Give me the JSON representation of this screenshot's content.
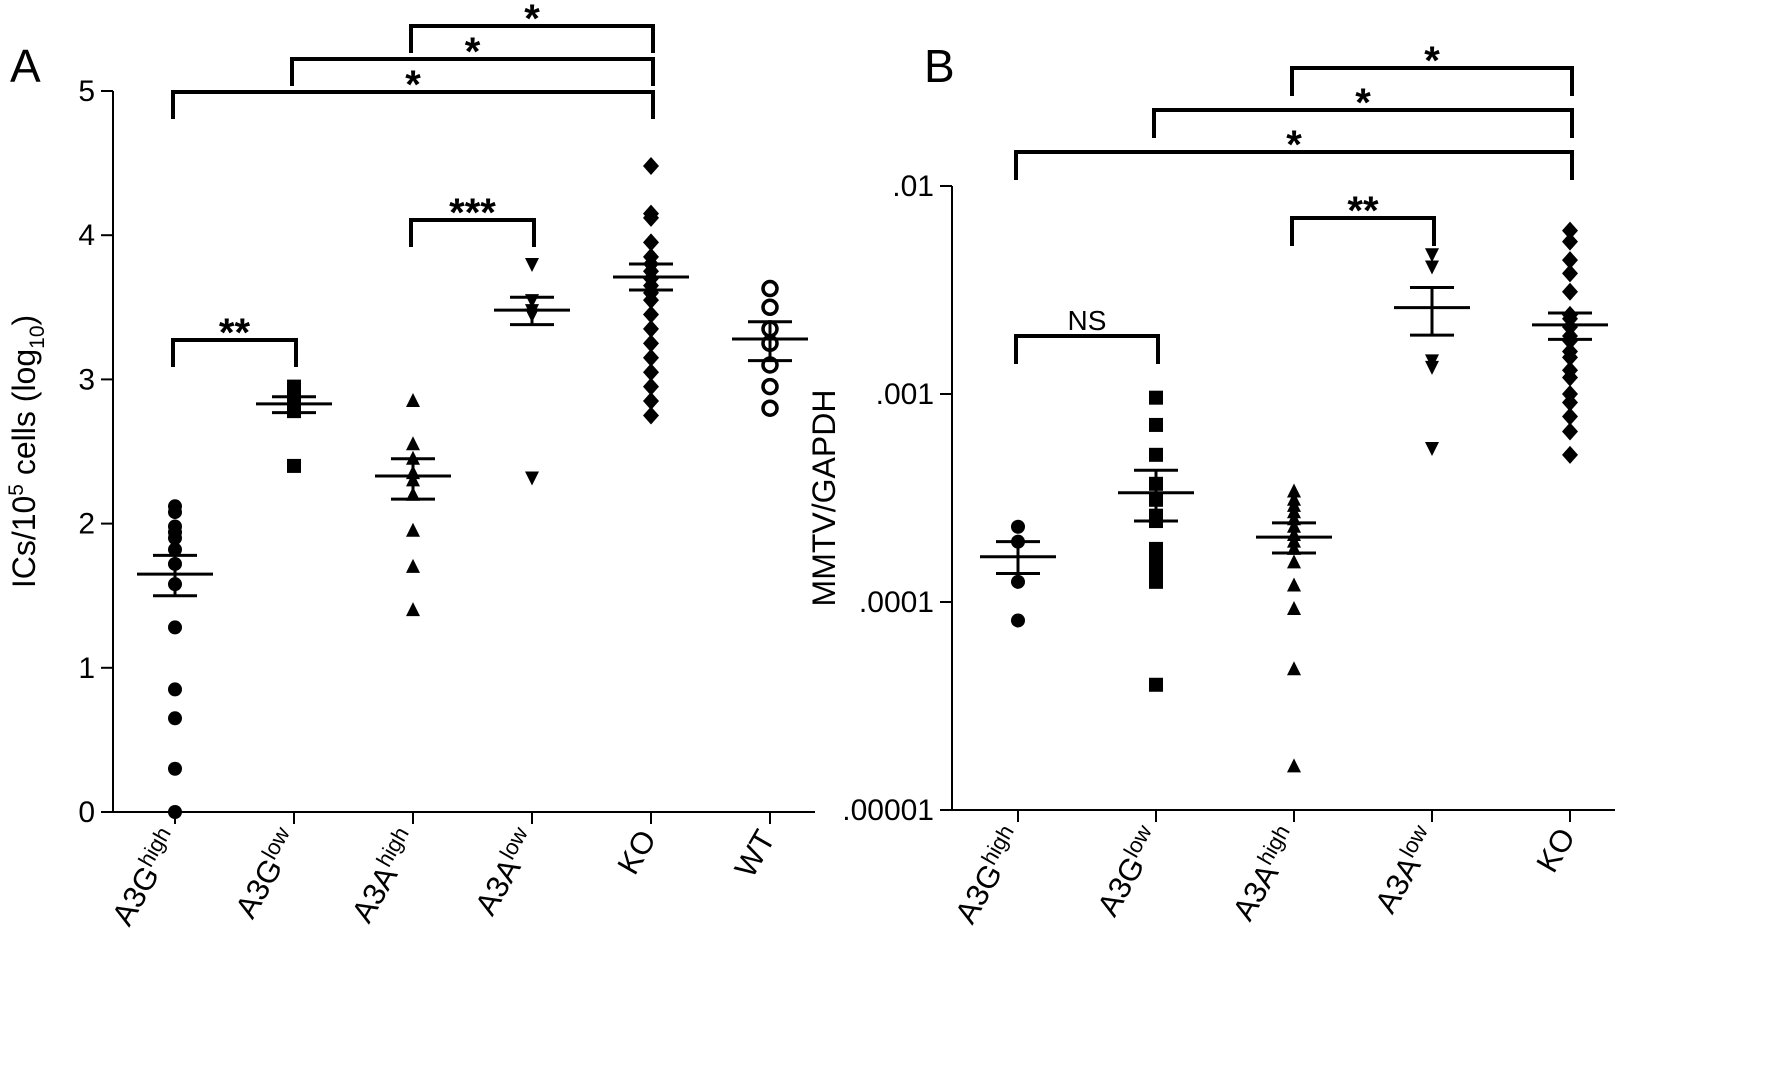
{
  "chart_data": [
    {
      "panel": "A",
      "type": "scatter",
      "ylabel": "ICs/10^5 cells (log10)",
      "ylabel_parts": [
        "ICs/10",
        "5",
        " cells (log",
        "10",
        ")"
      ],
      "ylim": [
        0,
        5
      ],
      "yscale": "linear",
      "yticks": [
        0,
        1,
        2,
        3,
        4,
        5
      ],
      "yticklabels": [
        "0",
        "1",
        "2",
        "3",
        "4",
        "5"
      ],
      "categories": [
        {
          "base": "A3G",
          "sup": "high"
        },
        {
          "base": "A3G",
          "sup": "low"
        },
        {
          "base": "A3A",
          "sup": "high"
        },
        {
          "base": "A3A",
          "sup": "low"
        },
        {
          "base": "KO",
          "sup": ""
        },
        {
          "base": "WT",
          "sup": ""
        }
      ],
      "groups": [
        {
          "marker": "circle",
          "points": [
            2.12,
            2.08,
            1.98,
            1.94,
            1.9,
            1.82,
            1.72,
            1.58,
            1.28,
            0.85,
            0.65,
            0.3,
            0.0
          ],
          "mean": 1.65,
          "sem": [
            1.5,
            1.78
          ]
        },
        {
          "marker": "square",
          "points": [
            2.95,
            2.9,
            2.85,
            2.8,
            2.78,
            2.4
          ],
          "mean": 2.83,
          "sem": [
            2.77,
            2.88
          ]
        },
        {
          "marker": "triangle-up",
          "points": [
            2.85,
            2.55,
            2.45,
            2.35,
            2.3,
            2.2,
            1.95,
            1.7,
            1.4
          ],
          "mean": 2.33,
          "sem": [
            2.17,
            2.45
          ]
        },
        {
          "marker": "triangle-down",
          "points": [
            3.8,
            3.55,
            3.48,
            3.45,
            2.32
          ],
          "mean": 3.48,
          "sem": [
            3.38,
            3.57
          ]
        },
        {
          "marker": "diamond",
          "points": [
            4.48,
            4.15,
            4.12,
            3.95,
            3.85,
            3.8,
            3.75,
            3.7,
            3.65,
            3.6,
            3.55,
            3.45,
            3.35,
            3.25,
            3.15,
            3.05,
            2.95,
            2.85,
            2.75
          ],
          "mean": 3.71,
          "sem": [
            3.62,
            3.8
          ]
        },
        {
          "marker": "open-circle",
          "points": [
            3.63,
            3.5,
            3.35,
            3.25,
            3.1,
            2.95,
            2.8
          ],
          "mean": 3.28,
          "sem": [
            3.13,
            3.4
          ]
        }
      ],
      "significance": [
        {
          "from": 0,
          "to": 1,
          "label": "**"
        },
        {
          "from": 2,
          "to": 3,
          "label": "***"
        },
        {
          "from": 2,
          "to": 4,
          "label": "*"
        },
        {
          "from": 1,
          "to": 4,
          "label": "*"
        },
        {
          "from": 0,
          "to": 4,
          "label": "*"
        }
      ]
    },
    {
      "panel": "B",
      "type": "scatter",
      "ylabel": "MMTV/GAPDH",
      "ylim": [
        1e-05,
        0.01
      ],
      "yscale": "log",
      "yticks": [
        1e-05,
        0.0001,
        0.001,
        0.01
      ],
      "yticklabels": [
        ".00001",
        ".0001",
        ".001",
        ".01"
      ],
      "categories": [
        {
          "base": "A3G",
          "sup": "high"
        },
        {
          "base": "A3G",
          "sup": "low"
        },
        {
          "base": "A3A",
          "sup": "high"
        },
        {
          "base": "A3A",
          "sup": "low"
        },
        {
          "base": "KO",
          "sup": ""
        }
      ],
      "groups": [
        {
          "marker": "circle",
          "points": [
            0.00023,
            0.000195,
            0.000125,
            8.15e-05
          ],
          "mean": 0.000165,
          "sem": [
            0.000137,
            0.000195
          ]
        },
        {
          "marker": "square",
          "points": [
            0.00096,
            0.00071,
            0.00051,
            0.00037,
            0.00031,
            0.00026,
            0.000245,
            0.00018,
            0.000155,
            0.00014,
            0.000125,
            4e-05
          ],
          "mean": 0.000335,
          "sem": [
            0.000245,
            0.00043
          ]
        },
        {
          "marker": "triangle-up",
          "points": [
            0.00034,
            0.00031,
            0.00029,
            0.00027,
            0.00025,
            0.00023,
            0.00021,
            0.000195,
            0.00018,
            0.000155,
            0.00012,
            9.25e-05,
            4.75e-05,
            1.62e-05
          ],
          "mean": 0.000205,
          "sem": [
            0.000172,
            0.00024
          ]
        },
        {
          "marker": "triangle-down",
          "points": [
            0.0047,
            0.0041,
            0.00145,
            0.00135,
            0.00055
          ],
          "mean": 0.0026,
          "sem": [
            0.00192,
            0.00325
          ]
        },
        {
          "marker": "diamond",
          "points": [
            0.0061,
            0.0054,
            0.0044,
            0.0038,
            0.0031,
            0.0024,
            0.0023,
            0.0021,
            0.0019,
            0.0018,
            0.0016,
            0.0015,
            0.0013,
            0.0012,
            0.001,
            0.00091,
            0.00078,
            0.00066,
            0.00051
          ],
          "mean": 0.00215,
          "sem": [
            0.00183,
            0.00245
          ]
        }
      ],
      "significance": [
        {
          "from": 0,
          "to": 1,
          "label": "NS"
        },
        {
          "from": 2,
          "to": 3,
          "label": "**"
        },
        {
          "from": 2,
          "to": 4,
          "label": "*"
        },
        {
          "from": 1,
          "to": 4,
          "label": "*"
        },
        {
          "from": 0,
          "to": 4,
          "label": "*"
        }
      ]
    }
  ]
}
